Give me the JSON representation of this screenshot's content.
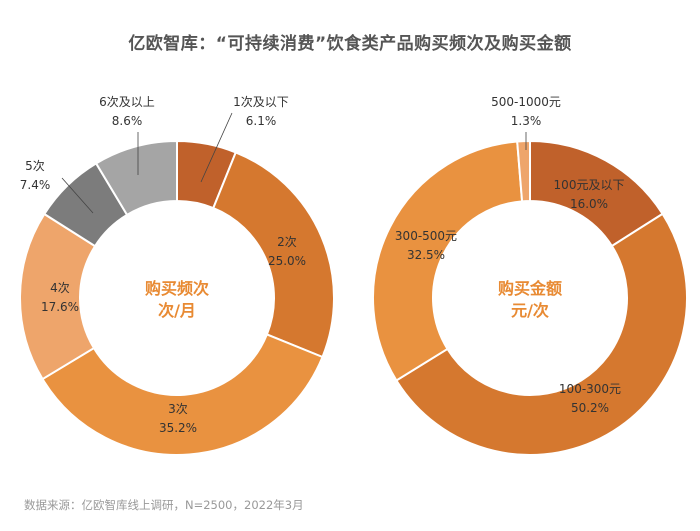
{
  "title": "亿欧智库：“可持续消费”饮食类产品购买频次及购买金额",
  "footer": "数据来源：亿欧智库线上调研，N=2500，2022年3月",
  "colors": {
    "center_text": "#E88A33",
    "leader": "#444444"
  },
  "chart_data": [
    {
      "type": "pie",
      "donut": true,
      "center_label": [
        "购买频次",
        "次/月"
      ],
      "slices": [
        {
          "label": "1次及以下",
          "value": 6.1,
          "display": "6.1%",
          "color": "#C0612B"
        },
        {
          "label": "2次",
          "value": 25.0,
          "display": "25.0%",
          "color": "#D5782F"
        },
        {
          "label": "3次",
          "value": 35.2,
          "display": "35.2%",
          "color": "#E99240"
        },
        {
          "label": "4次",
          "value": 17.6,
          "display": "17.6%",
          "color": "#EEA56B"
        },
        {
          "label": "5次",
          "value": 7.4,
          "display": "7.4%",
          "color": "#7C7C7C"
        },
        {
          "label": "6次及以上",
          "value": 8.6,
          "display": "8.6%",
          "color": "#A5A5A5"
        }
      ]
    },
    {
      "type": "pie",
      "donut": true,
      "center_label": [
        "购买金额",
        "元/次"
      ],
      "slices": [
        {
          "label": "100元及以下",
          "value": 16.0,
          "display": "16.0%",
          "color": "#C0612B"
        },
        {
          "label": "100-300元",
          "value": 50.2,
          "display": "50.2%",
          "color": "#D5782F"
        },
        {
          "label": "300-500元",
          "value": 32.5,
          "display": "32.5%",
          "color": "#E99240"
        },
        {
          "label": "500-1000元",
          "value": 1.3,
          "display": "1.3%",
          "color": "#EEA56B"
        }
      ]
    }
  ]
}
